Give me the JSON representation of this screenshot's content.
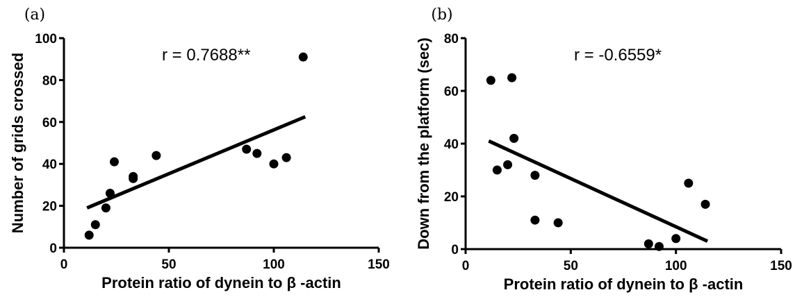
{
  "chart_data": [
    {
      "type": "scatter",
      "panel_label": "(a)",
      "xlabel": "Protein ratio of dynein to β -actin",
      "ylabel": "Number of grids crossed",
      "annotation": "r = 0.7688**",
      "xlim": [
        0,
        150
      ],
      "ylim": [
        0,
        100
      ],
      "xticks": [
        0,
        50,
        100,
        150
      ],
      "yticks": [
        0,
        20,
        40,
        60,
        80,
        100
      ],
      "grid": false,
      "points": [
        {
          "x": 12,
          "y": 6
        },
        {
          "x": 15,
          "y": 11
        },
        {
          "x": 20,
          "y": 19
        },
        {
          "x": 22,
          "y": 26
        },
        {
          "x": 24,
          "y": 41
        },
        {
          "x": 33,
          "y": 34
        },
        {
          "x": 33,
          "y": 33
        },
        {
          "x": 44,
          "y": 44
        },
        {
          "x": 87,
          "y": 47
        },
        {
          "x": 92,
          "y": 45
        },
        {
          "x": 100,
          "y": 40
        },
        {
          "x": 106,
          "y": 43
        },
        {
          "x": 114,
          "y": 91
        }
      ],
      "fit_line": {
        "x": [
          11,
          115
        ],
        "y": [
          19,
          62.5
        ]
      }
    },
    {
      "type": "scatter",
      "panel_label": "(b)",
      "xlabel": "Protein ratio of dynein to β -actin",
      "ylabel": "Down from the platform (sec)",
      "annotation": "r =  -0.6559*",
      "xlim": [
        0,
        150
      ],
      "ylim": [
        0,
        80
      ],
      "xticks": [
        0,
        50,
        100,
        150
      ],
      "yticks": [
        0,
        20,
        40,
        60,
        80
      ],
      "grid": false,
      "points": [
        {
          "x": 12,
          "y": 64
        },
        {
          "x": 22,
          "y": 65
        },
        {
          "x": 15,
          "y": 30
        },
        {
          "x": 20,
          "y": 32
        },
        {
          "x": 23,
          "y": 42
        },
        {
          "x": 33,
          "y": 28
        },
        {
          "x": 33,
          "y": 11
        },
        {
          "x": 44,
          "y": 10
        },
        {
          "x": 87,
          "y": 2
        },
        {
          "x": 92,
          "y": 1
        },
        {
          "x": 100,
          "y": 4
        },
        {
          "x": 106,
          "y": 25
        },
        {
          "x": 114,
          "y": 17
        }
      ],
      "fit_line": {
        "x": [
          11,
          115
        ],
        "y": [
          41,
          3
        ]
      }
    }
  ]
}
